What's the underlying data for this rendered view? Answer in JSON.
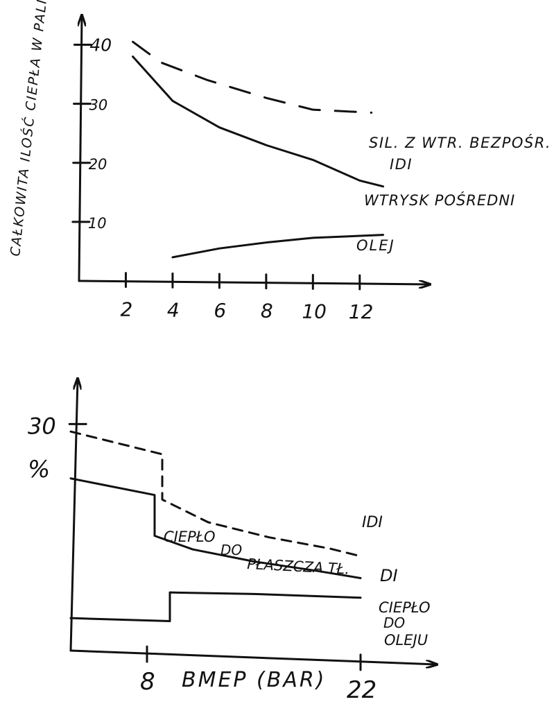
{
  "chart_data": [
    {
      "type": "line",
      "title": "",
      "ylabel": "CAŁKOWITA ILOŚĆ CIEPŁA W PALIWIE.",
      "xlabel": "",
      "xticks": [
        "2",
        "4",
        "6",
        "8",
        "10",
        "12"
      ],
      "yticks": [
        "10",
        "20",
        "30",
        "40"
      ],
      "xlim": [
        0,
        15
      ],
      "ylim": [
        0,
        45
      ],
      "series": [
        {
          "name": "SIL. Z WTR. BEZPOŚR.",
          "name2": "IDI",
          "style": "dashed",
          "x": [
            2.3,
            3.5,
            5.5,
            8,
            10,
            12.5
          ],
          "y": [
            40.5,
            37,
            34,
            31,
            29,
            28.5
          ]
        },
        {
          "name": "WTRYSK POŚREDNI",
          "style": "solid",
          "x": [
            2.3,
            4,
            6,
            8,
            10,
            12,
            13
          ],
          "y": [
            38,
            30.5,
            26,
            23,
            20.5,
            17,
            16
          ]
        },
        {
          "name": "OLEJ",
          "style": "solid",
          "x": [
            4,
            6,
            8,
            10,
            13
          ],
          "y": [
            4,
            5.5,
            6.5,
            7.3,
            7.8
          ]
        }
      ]
    },
    {
      "type": "line",
      "title": "",
      "ylabel": "%",
      "xlabel": "BMEP (BAR)",
      "xticks": [
        "8",
        "22"
      ],
      "yticks": [
        "30"
      ],
      "xlim": [
        3,
        27
      ],
      "ylim": [
        0,
        36
      ],
      "series": [
        {
          "name": "IDI",
          "style": "dashed",
          "x": [
            3,
            9,
            9,
            12,
            16,
            20,
            22
          ],
          "y": [
            29,
            26,
            20,
            17,
            15,
            13.5,
            12.5
          ]
        },
        {
          "name": "CIEPŁO DO PŁASZCZA TŁ.",
          "name2": "DI",
          "style": "solid",
          "x": [
            3,
            8.5,
            8.5,
            11,
            15,
            19,
            22
          ],
          "y": [
            22.8,
            20.6,
            15.2,
            13.4,
            11.8,
            10.6,
            9.6
          ]
        },
        {
          "name": "CIEPŁO DO OLEJU",
          "style": "solid",
          "x": [
            3,
            9.5,
            9.5,
            15,
            22
          ],
          "y": [
            4.3,
            3.9,
            7.7,
            7.5,
            7.0
          ]
        }
      ],
      "labels": {
        "idi": "IDI",
        "jacket_1": "CIEPŁO",
        "jacket_2": "DO",
        "jacket_3": "PŁASZCZA TŁ.",
        "di": "DI",
        "oil_1": "CIEPŁO",
        "oil_2": "DO",
        "oil_3": "OLEJU"
      }
    }
  ],
  "colors": {
    "ink": "#111111",
    "paper": "#ffffff"
  }
}
